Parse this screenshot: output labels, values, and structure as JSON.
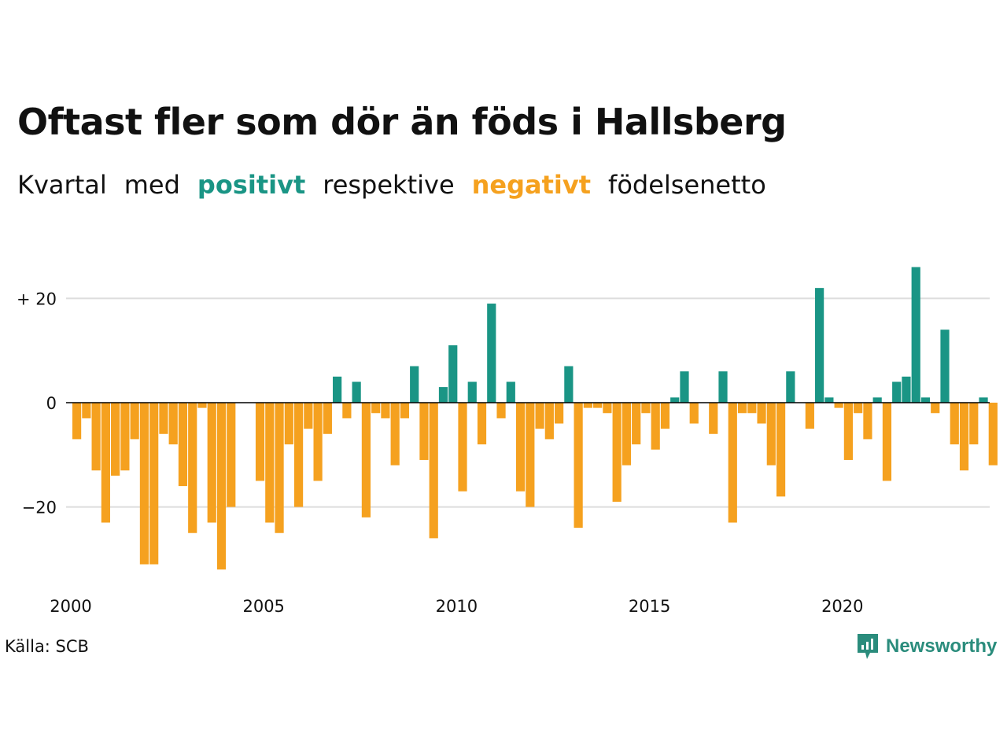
{
  "title": "Oftast fler som dör än föds i Hallsberg",
  "subtitle": {
    "w1": "Kvartal",
    "w2": "med",
    "positive": "positivt",
    "w3": "respektive",
    "negative": "negativt",
    "w4": "födelsenetto"
  },
  "colors": {
    "positive": "#1a9585",
    "negative": "#f5a11f",
    "grid": "#dddddd",
    "zero": "#000000"
  },
  "source": "Källa: SCB",
  "brand": {
    "name": "Newsworthy",
    "icon": "newsworthy-logo-icon"
  },
  "chart_data": {
    "type": "bar",
    "x_start": "2000 Q1",
    "x_ticks": [
      2000,
      2005,
      2010,
      2015,
      2020
    ],
    "y_ticks": [
      {
        "value": 20,
        "label": "+ 20"
      },
      {
        "value": 0,
        "label": "0"
      },
      {
        "value": -20,
        "label": "−20"
      }
    ],
    "ylim": [
      -35,
      29
    ],
    "grid": true,
    "values": [
      -7,
      -3,
      -13,
      -23,
      -14,
      -13,
      -7,
      -31,
      -31,
      -6,
      -8,
      -16,
      -25,
      -1,
      -23,
      -32,
      -20,
      0,
      0,
      -15,
      -23,
      -25,
      -8,
      -20,
      -5,
      -15,
      -6,
      5,
      -3,
      4,
      -22,
      -2,
      -3,
      -12,
      -3,
      7,
      -11,
      -26,
      3,
      11,
      -17,
      4,
      -8,
      19,
      -3,
      4,
      -17,
      -20,
      -5,
      -7,
      -4,
      7,
      -24,
      -1,
      -1,
      -2,
      -19,
      -12,
      -8,
      -2,
      -9,
      -5,
      1,
      6,
      -4,
      0,
      -6,
      6,
      -23,
      -2,
      -2,
      -4,
      -12,
      -18,
      6,
      0,
      -5,
      22,
      1,
      -1,
      -11,
      -2,
      -7,
      1,
      -15,
      4,
      5,
      26,
      1,
      -2,
      14,
      -8,
      -13,
      -8,
      1,
      -12
    ]
  }
}
